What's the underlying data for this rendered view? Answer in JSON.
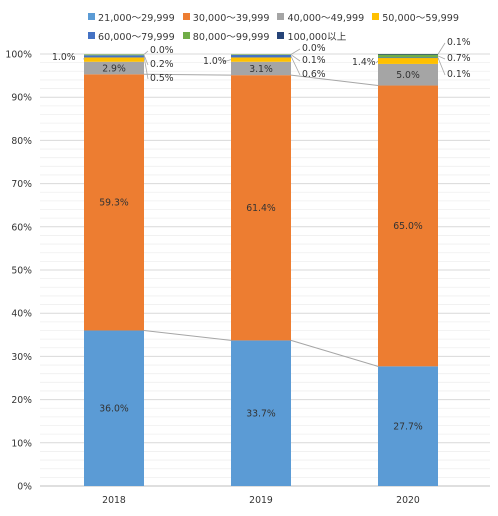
{
  "chart_data": {
    "type": "bar",
    "stacked": true,
    "categories": [
      "2018",
      "2019",
      "2020"
    ],
    "series": [
      {
        "name": "21,000～29,999",
        "color": "#5b9bd5",
        "values": [
          36.0,
          33.7,
          27.7
        ],
        "labels": [
          "36.0%",
          "33.7%",
          "27.7%"
        ]
      },
      {
        "name": "30,000～39,999",
        "color": "#ed7d31",
        "values": [
          59.3,
          61.4,
          65.0
        ],
        "labels": [
          "59.3%",
          "61.4%",
          "65.0%"
        ]
      },
      {
        "name": "40,000～49,999",
        "color": "#a5a5a5",
        "values": [
          2.9,
          3.1,
          5.0
        ],
        "labels": [
          "2.9%",
          "3.1%",
          "5.0%"
        ]
      },
      {
        "name": "50,000～59,999",
        "color": "#ffc000",
        "values": [
          1.0,
          1.0,
          1.4
        ],
        "labels": [
          "1.0%",
          "1.0%",
          "1.4%"
        ]
      },
      {
        "name": "60,000～79,999",
        "color": "#4472c4",
        "values": [
          0.5,
          0.6,
          0.1
        ],
        "labels": [
          "0.5%",
          "0.6%",
          "0.1%"
        ]
      },
      {
        "name": "80,000～99,999",
        "color": "#70ad47",
        "values": [
          0.2,
          0.1,
          0.7
        ],
        "labels": [
          "0.2%",
          "0.1%",
          "0.7%"
        ]
      },
      {
        "name": "100,000以上",
        "color": "#264478",
        "values": [
          0.0,
          0.0,
          0.1
        ],
        "labels": [
          "0.0%",
          "0.0%",
          "0.1%"
        ]
      }
    ],
    "y_ticks": [
      "0%",
      "10%",
      "20%",
      "30%",
      "40%",
      "50%",
      "60%",
      "70%",
      "80%",
      "90%",
      "100%"
    ],
    "ylim": [
      0,
      100
    ],
    "grid": true,
    "legend": "top"
  }
}
